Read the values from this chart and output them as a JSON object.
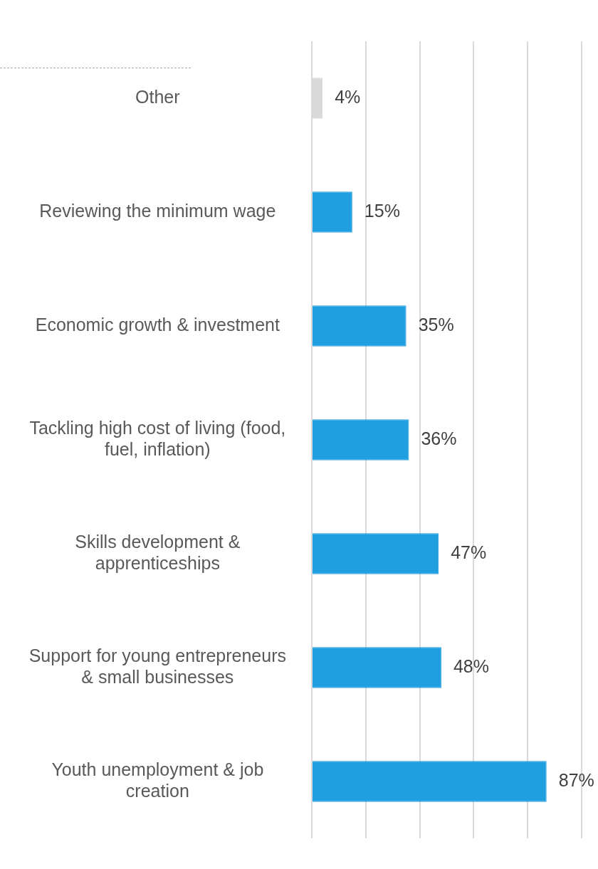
{
  "chart_data": {
    "type": "bar",
    "orientation": "horizontal",
    "categories": [
      "Other",
      "Reviewing the minimum wage",
      "Economic growth & investment",
      "Tackling high cost of living (food, fuel, inflation)",
      "Skills development & apprenticeships",
      "Support for young entrepreneurs & small businesses",
      "Youth unemployment & job creation"
    ],
    "values": [
      4,
      15,
      35,
      36,
      47,
      48,
      87
    ],
    "colors": [
      "#d9d9d9",
      "#1f9fe0",
      "#1f9fe0",
      "#1f9fe0",
      "#1f9fe0",
      "#1f9fe0",
      "#1f9fe0"
    ],
    "value_labels": [
      "4%",
      "15%",
      "35%",
      "36%",
      "47%",
      "48%",
      "87%"
    ],
    "tick_labels": "y",
    "grid": "x",
    "legend": false
  }
}
